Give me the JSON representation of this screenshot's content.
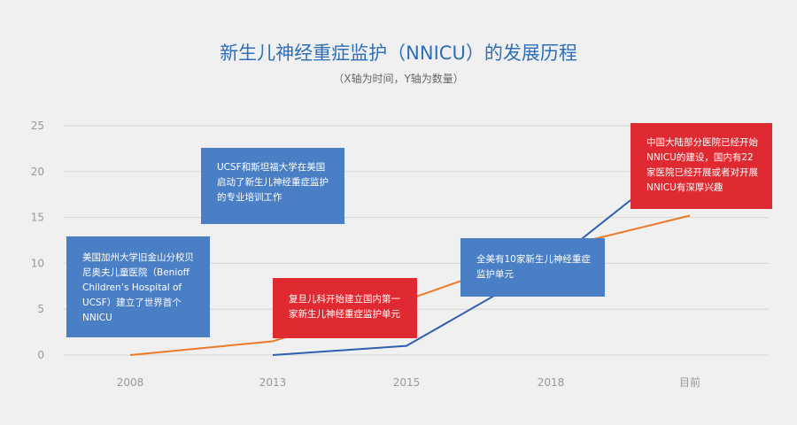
{
  "chart_data": {
    "type": "line",
    "title": "新生儿神经重症监护（NNICU）的发展历程",
    "subtitle": "（X轴为时间，Y轴为数量）",
    "categories": [
      "2008",
      "2013",
      "2015",
      "2018",
      "目前"
    ],
    "ylim": [
      0,
      25
    ],
    "yticks": [
      0,
      5,
      10,
      15,
      20,
      25
    ],
    "grid": true,
    "series": [
      {
        "color": "#ec7a26",
        "points": [
          {
            "x": "2008",
            "y": 0
          },
          {
            "x": "2013",
            "y": 1.5
          },
          {
            "x": "2015",
            "y": 6
          },
          {
            "x": "2018",
            "y": 11.5
          },
          {
            "x": "目前",
            "y": 15.2
          }
        ]
      },
      {
        "color": "#2f5fad",
        "points": [
          {
            "x": "2013",
            "y": 0
          },
          {
            "x": "2015",
            "y": 1
          },
          {
            "x": "2018",
            "y": 10
          },
          {
            "x": "目前",
            "y": 22
          }
        ]
      }
    ],
    "annotations": [
      {
        "text": "美国加州大学旧金山分校贝尼奥夫儿童医院（Benioff Children’s Hospital of UCSF）建立了世界首个NNICU",
        "color": "#4a7fc5"
      },
      {
        "text": "UCSF和斯坦福大学在美国启动了新生儿神经重症监护的专业培训工作",
        "color": "#4a7fc5"
      },
      {
        "text": "复旦儿科开始建立国内第一家新生儿神经重症监护单元",
        "color": "#e02a31"
      },
      {
        "text": "全美有10家新生儿神经重症监护单元",
        "color": "#4a7fc5"
      },
      {
        "text": "中国大陆部分医院已经开始NNICU的建设，国内有22家医院已经开展或者对开展NNICU有深厚兴趣",
        "color": "#e02a31"
      }
    ]
  }
}
